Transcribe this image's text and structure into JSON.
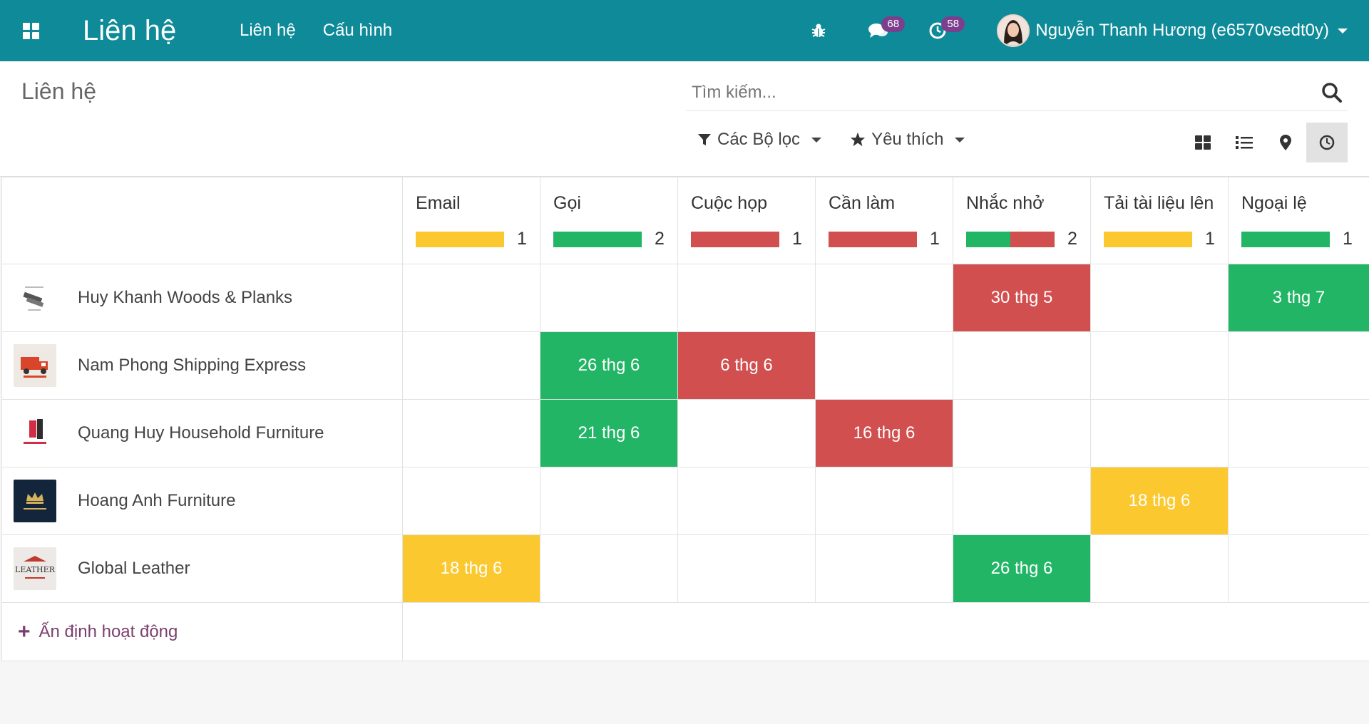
{
  "app": {
    "title": "Liên hệ",
    "menu": [
      "Liên hệ",
      "Cấu hình"
    ]
  },
  "systray": {
    "messages_count": "68",
    "activities_count": "58",
    "user_name": "Nguyễn Thanh Hương (e6570vsedt0y)"
  },
  "control_panel": {
    "breadcrumb": "Liên hệ",
    "search_placeholder": "Tìm kiếm...",
    "filters_label": "Các Bộ lọc",
    "favorites_label": "Yêu thích"
  },
  "colors": {
    "planned": "#21b565",
    "overdue": "#d14f4f",
    "today": "#fcc830",
    "navbar": "#0e8a98"
  },
  "columns": [
    {
      "title": "Email",
      "count": "1",
      "progress": {
        "today": 1,
        "planned": 0,
        "overdue": 0
      }
    },
    {
      "title": "Gọi",
      "count": "2",
      "progress": {
        "today": 0,
        "planned": 1,
        "overdue": 0
      }
    },
    {
      "title": "Cuộc họp",
      "count": "1",
      "progress": {
        "today": 0,
        "planned": 0,
        "overdue": 1
      }
    },
    {
      "title": "Cần làm",
      "count": "1",
      "progress": {
        "today": 0,
        "planned": 0,
        "overdue": 1
      }
    },
    {
      "title": "Nhắc nhở",
      "count": "2",
      "progress": {
        "today": 0,
        "planned": 0.5,
        "overdue": 0.5
      }
    },
    {
      "title": "Tải tài liệu lên",
      "count": "1",
      "progress": {
        "today": 1,
        "planned": 0,
        "overdue": 0
      }
    },
    {
      "title": "Ngoại lệ",
      "count": "1",
      "progress": {
        "today": 0,
        "planned": 1,
        "overdue": 0
      }
    }
  ],
  "rows": [
    {
      "name": "Huy Khanh Woods & Planks",
      "logo": "wood-logo",
      "cells": [
        null,
        null,
        null,
        null,
        {
          "label": "30 thg 5",
          "state": "overdue"
        },
        null,
        {
          "label": "3 thg 7",
          "state": "planned"
        }
      ]
    },
    {
      "name": "Nam Phong Shipping Express",
      "logo": "truck-logo",
      "cells": [
        null,
        {
          "label": "26 thg 6",
          "state": "planned"
        },
        {
          "label": "6 thg 6",
          "state": "overdue"
        },
        null,
        null,
        null,
        null
      ]
    },
    {
      "name": "Quang Huy Household Furniture",
      "logo": "furniture-logo",
      "cells": [
        null,
        {
          "label": "21 thg 6",
          "state": "planned"
        },
        null,
        {
          "label": "16 thg 6",
          "state": "overdue"
        },
        null,
        null,
        null
      ]
    },
    {
      "name": "Hoang Anh Furniture",
      "logo": "crown-logo",
      "cells": [
        null,
        null,
        null,
        null,
        null,
        {
          "label": "18 thg 6",
          "state": "today"
        },
        null
      ]
    },
    {
      "name": "Global Leather",
      "logo": "leather-logo",
      "cells": [
        {
          "label": "18 thg 6",
          "state": "today"
        },
        null,
        null,
        null,
        {
          "label": "26 thg 6",
          "state": "planned"
        },
        null,
        null
      ]
    }
  ],
  "footer": {
    "schedule_label": "Ấn định hoạt động"
  }
}
